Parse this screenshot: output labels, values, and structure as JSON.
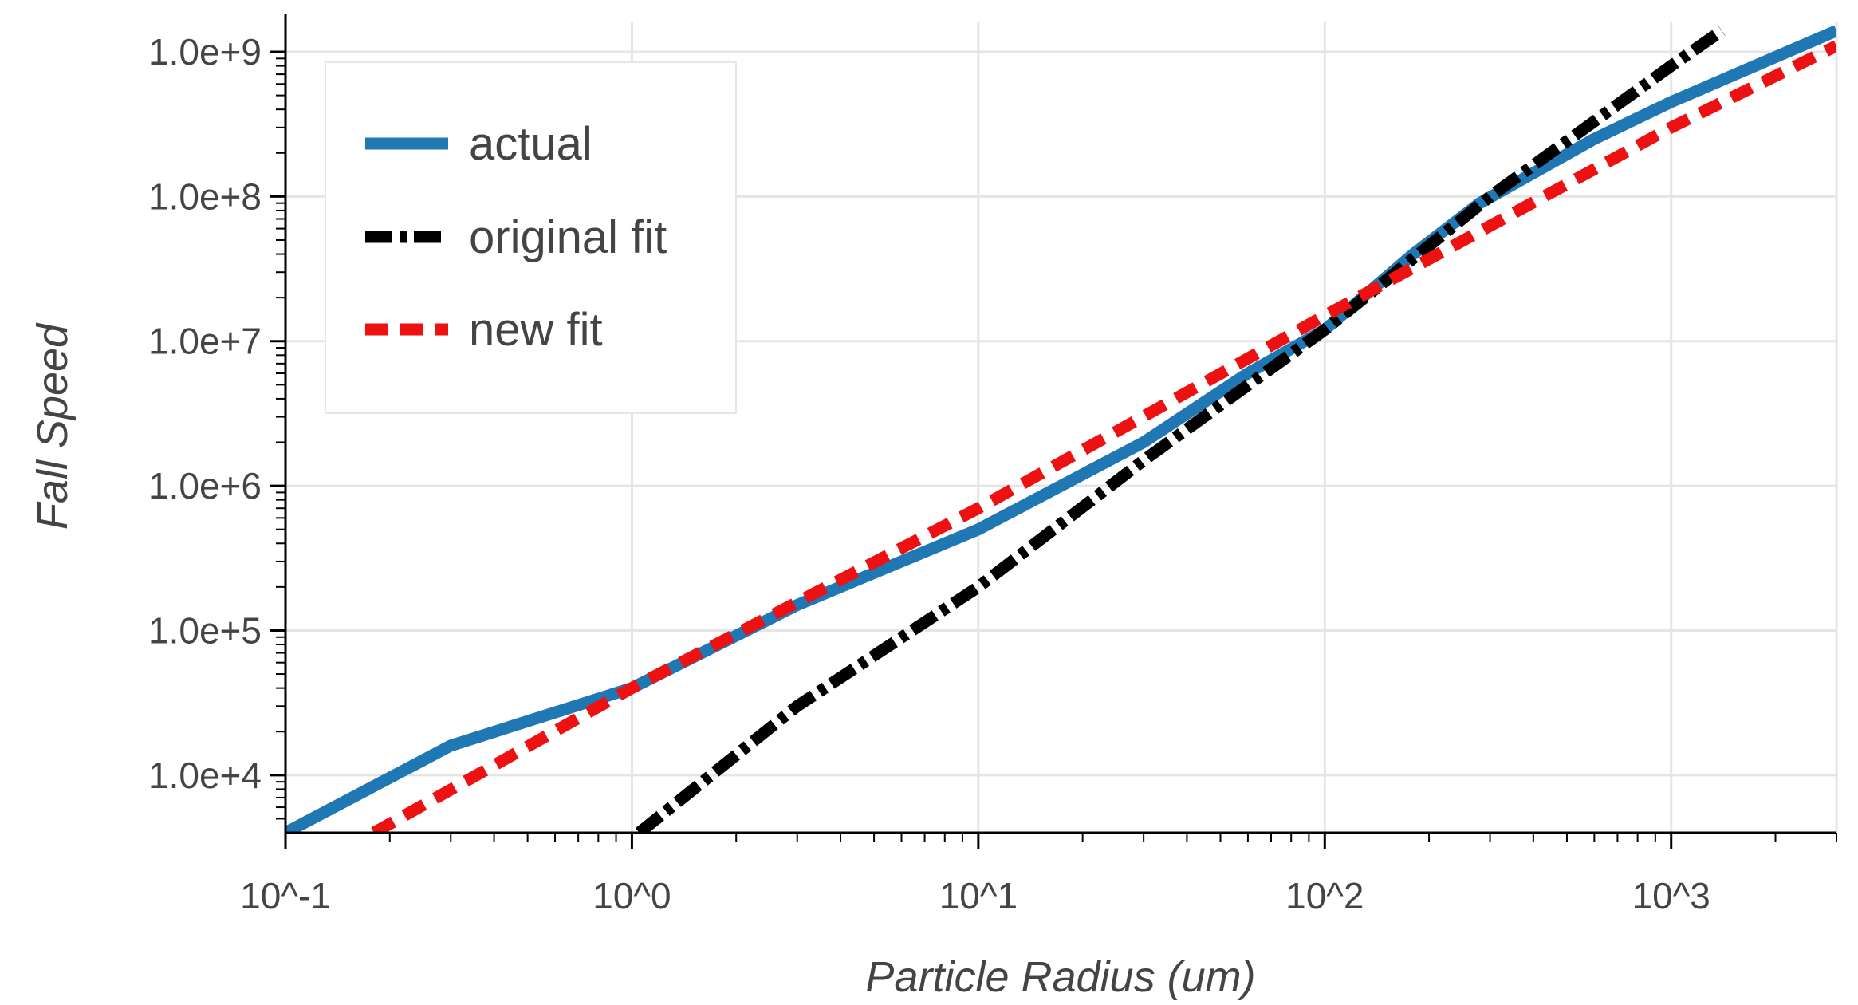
{
  "chart_data": {
    "type": "line",
    "title": "",
    "xlabel": "Particle Radius (um)",
    "ylabel": "Fall Speed",
    "xscale": "log",
    "yscale": "log",
    "xlim": [
      0.1,
      3000
    ],
    "ylim": [
      4000,
      1600000000
    ],
    "grid": true,
    "legend_position": "top-left",
    "x_tick_values": [
      0.1,
      1,
      10,
      100,
      1000
    ],
    "x_tick_labels": [
      "10^-1",
      "10^0",
      "10^1",
      "10^2",
      "10^3"
    ],
    "y_tick_values": [
      10000,
      100000,
      1000000,
      10000000,
      100000000,
      1000000000
    ],
    "y_tick_labels": [
      "1.0e+4",
      "1.0e+5",
      "1.0e+6",
      "1.0e+7",
      "1.0e+8",
      "1.0e+9"
    ],
    "series": [
      {
        "name": "actual",
        "color": "#1f77b4",
        "dash": "solid",
        "x": [
          0.1,
          0.3,
          1,
          3,
          10,
          30,
          60,
          100,
          180,
          280,
          600,
          1000,
          3000
        ],
        "y": [
          4000,
          16000,
          40000,
          150000,
          500000,
          2000000,
          6000000,
          12000000,
          40000000,
          90000000,
          250000000,
          450000000,
          1400000000
        ]
      },
      {
        "name": "original fit",
        "color": "#000000",
        "dash": "dashdot",
        "x": [
          1.05,
          3,
          10,
          30,
          100,
          300,
          1000,
          1400
        ],
        "y": [
          4000,
          30000,
          200000,
          1500000,
          12000000,
          100000000,
          800000000,
          1400000000
        ]
      },
      {
        "name": "new fit",
        "color": "#ee1111",
        "dash": "dashed",
        "x": [
          0.18,
          1,
          10,
          100,
          1000,
          3000
        ],
        "y": [
          4000,
          40000,
          700000,
          15000000,
          300000000,
          1100000000
        ]
      }
    ]
  }
}
